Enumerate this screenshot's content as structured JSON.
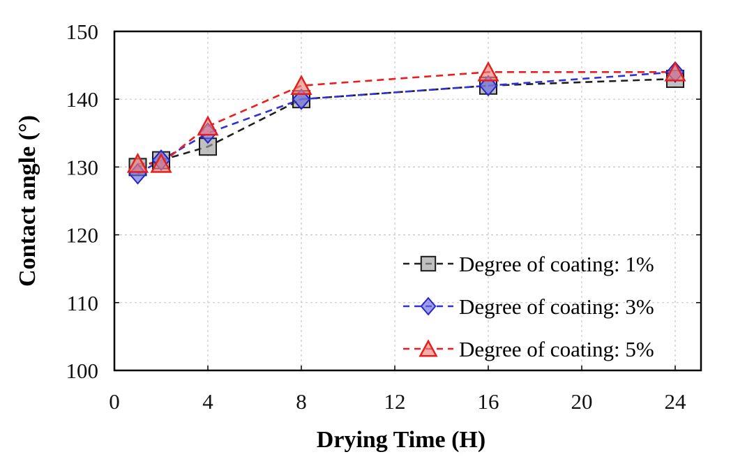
{
  "figure": {
    "background": "#ffffff",
    "grid_color": "#c6c6c6",
    "frame_color": "#000000"
  },
  "chart_data": {
    "type": "line",
    "title": "",
    "xlabel": "Drying Time (H)",
    "ylabel": "Contact angle (°)",
    "x": [
      1,
      2,
      4,
      8,
      16,
      24
    ],
    "xlim": [
      0,
      25.1
    ],
    "ylim": [
      100,
      150
    ],
    "xticks": [
      0,
      4,
      8,
      12,
      16,
      20,
      24
    ],
    "yticks": [
      100,
      110,
      120,
      130,
      140,
      150
    ],
    "grid": true,
    "line_style": "dashed",
    "legend_position": "inside-bottom-right",
    "series": [
      {
        "name": "Degree of coating: 1%",
        "marker": "square",
        "line_color": "#1f1f1f",
        "marker_fill": "#9e9e9e",
        "marker_edge": "#1a1a1a",
        "values": [
          130,
          131,
          133,
          140,
          142,
          143
        ]
      },
      {
        "name": "Degree of coating: 3%",
        "marker": "diamond",
        "line_color": "#3030d8",
        "marker_fill": "#6a6ae0",
        "marker_edge": "#2525cc",
        "values": [
          129,
          131,
          135,
          140,
          142,
          144
        ]
      },
      {
        "name": "Degree of coating: 5%",
        "marker": "triangle",
        "line_color": "#ee1c1c",
        "marker_fill": "#f0837d",
        "marker_edge": "#e61e1e",
        "values": [
          130.5,
          130.5,
          136,
          142,
          144,
          144
        ]
      }
    ]
  }
}
